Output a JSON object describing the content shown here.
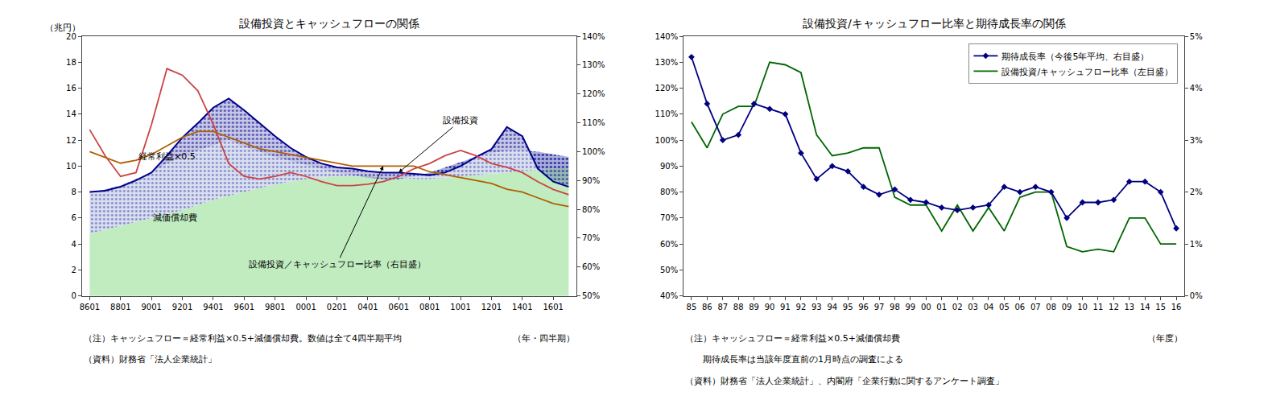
{
  "chart_data": [
    {
      "type": "line",
      "title": "設備投資とキャッシュフローの関係",
      "ylabel": "（兆円）",
      "xlabel": "（年・四半期）",
      "notes": [
        "（注）キャッシュフロー＝経常利益×0.5+減価償却費。数値は全て4四半期平均",
        "（資料）財務省「法人企業統計」"
      ],
      "categories": [
        "8601",
        null,
        "8801",
        null,
        "9001",
        null,
        "9201",
        null,
        "9401",
        null,
        "9601",
        null,
        "9801",
        null,
        "0001",
        null,
        "0201",
        null,
        "0401",
        null,
        "0601",
        null,
        "0801",
        null,
        "1001",
        null,
        "1201",
        null,
        "1401",
        null,
        "1601",
        null
      ],
      "ylim": [
        0,
        20
      ],
      "yticks": [
        0,
        2,
        4,
        6,
        8,
        10,
        12,
        14,
        16,
        18,
        20
      ],
      "y2lim": [
        50,
        140
      ],
      "y2ticks": [
        {
          "value": 50,
          "label": "50%"
        },
        {
          "value": 60,
          "label": "60%"
        },
        {
          "value": 70,
          "label": "70%"
        },
        {
          "value": 80,
          "label": "80%"
        },
        {
          "value": 90,
          "label": "90%"
        },
        {
          "value": 100,
          "label": "100%"
        },
        {
          "value": 110,
          "label": "110%"
        },
        {
          "value": 120,
          "label": "120%"
        },
        {
          "value": 130,
          "label": "130%"
        },
        {
          "value": 140,
          "label": "140%"
        }
      ],
      "grid": false,
      "series": [
        {
          "type": "area",
          "color": "#c0ecc0",
          "values": [
            4.8,
            5.1,
            5.4,
            5.7,
            6.0,
            6.3,
            6.6,
            7.0,
            7.4,
            7.7,
            8.0,
            8.3,
            8.6,
            8.8,
            9.0,
            9.1,
            9.2,
            9.2,
            9.2,
            9.1,
            9.1,
            9.0,
            9.0,
            9.1,
            9.2,
            9.3,
            9.4,
            9.5,
            9.6,
            9.7,
            9.8,
            9.9
          ]
        },
        {
          "type": "area",
          "color": "#d8dff0",
          "values": [
            7.9,
            8.2,
            8.5,
            9.0,
            9.5,
            10.2,
            10.8,
            11.2,
            11.6,
            12.0,
            11.5,
            11.1,
            10.7,
            10.4,
            10.1,
            9.8,
            9.5,
            9.3,
            9.1,
            9.0,
            9.0,
            9.2,
            9.5,
            9.9,
            10.3,
            10.7,
            11.0,
            11.2,
            11.2,
            11.1,
            10.9,
            10.7
          ]
        },
        {
          "type": "band",
          "color": "#00008B",
          "values": [
            8.0,
            8.1,
            8.4,
            8.9,
            9.5,
            10.8,
            12.2,
            13.3,
            14.5,
            15.2,
            14.3,
            13.3,
            12.3,
            11.4,
            10.7,
            10.2,
            9.9,
            9.8,
            9.6,
            9.5,
            9.5,
            9.4,
            9.3,
            9.5,
            10.0,
            10.7,
            11.3,
            13.0,
            12.3,
            9.8,
            8.8,
            8.4
          ]
        },
        {
          "type": "line",
          "color": "#cc4444",
          "values": [
            12.8,
            10.8,
            9.2,
            9.5,
            13.2,
            17.5,
            17.0,
            15.8,
            13.2,
            10.2,
            9.2,
            9.0,
            9.2,
            9.5,
            9.2,
            8.8,
            8.5,
            8.5,
            8.6,
            8.8,
            9.2,
            9.8,
            10.2,
            10.8,
            11.2,
            10.8,
            10.2,
            9.9,
            9.5,
            8.8,
            8.2,
            7.8
          ]
        },
        {
          "type": "line",
          "color": "#b06000",
          "axis": "y2",
          "values": [
            100,
            98,
            96,
            97,
            99,
            102,
            105,
            107,
            107,
            105,
            103,
            101,
            100,
            99,
            98,
            97,
            96,
            95,
            95,
            95,
            95,
            95,
            93,
            92,
            91,
            90,
            89,
            87,
            86,
            84,
            82,
            81
          ]
        }
      ],
      "annotations": [
        {
          "text": "設備投資",
          "x": 20,
          "y": 9.5,
          "text_x": 24,
          "text_y": 13.5,
          "arrow": true
        },
        {
          "text": "減価償却費",
          "x": 4,
          "y": 5.5
        },
        {
          "text": "経常利益×0.5",
          "x": 3,
          "y": 10.2
        },
        {
          "text": "設備投資／キャッシュフロー比率（右目盛）",
          "x": 19,
          "y": 95,
          "text_x": 16,
          "text_y": 61,
          "axis": "y2",
          "arrow": true
        }
      ]
    },
    {
      "type": "line",
      "title": "設備投資/キャッシュフロー比率と期待成長率の関係",
      "xlabel": "（年度）",
      "notes": [
        "（注）キャッシュフロー＝経常利益×0.5+減価償却費",
        "　　期待成長率は当該年度直前の1月時点の調査による",
        "（資料）財務省「法人企業統計」、内閣府「企業行動に関するアンケート調査」"
      ],
      "categories": [
        "85",
        "86",
        "87",
        "88",
        "89",
        "90",
        "91",
        "92",
        "93",
        "94",
        "95",
        "96",
        "97",
        "98",
        "99",
        "00",
        "01",
        "02",
        "03",
        "04",
        "05",
        "06",
        "07",
        "08",
        "09",
        "10",
        "11",
        "12",
        "13",
        "14",
        "15",
        "16"
      ],
      "ylim": [
        40,
        140
      ],
      "yticks": [
        {
          "value": 40,
          "label": "40%"
        },
        {
          "value": 50,
          "label": "50%"
        },
        {
          "value": 60,
          "label": "60%"
        },
        {
          "value": 70,
          "label": "70%"
        },
        {
          "value": 80,
          "label": "80%"
        },
        {
          "value": 90,
          "label": "90%"
        },
        {
          "value": 100,
          "label": "100%"
        },
        {
          "value": 110,
          "label": "110%"
        },
        {
          "value": 120,
          "label": "120%"
        },
        {
          "value": 130,
          "label": "130%"
        },
        {
          "value": 140,
          "label": "140%"
        }
      ],
      "y2lim": [
        0,
        5
      ],
      "y2ticks": [
        {
          "value": 0,
          "label": "0%"
        },
        {
          "value": 1,
          "label": "1%"
        },
        {
          "value": 2,
          "label": "2%"
        },
        {
          "value": 3,
          "label": "3%"
        },
        {
          "value": 4,
          "label": "4%"
        },
        {
          "value": 5,
          "label": "5%"
        }
      ],
      "grid": false,
      "legend": "upper right",
      "series": [
        {
          "name": "設備投資/キャッシュフロー比率（左目盛）",
          "type": "line",
          "color": "#006600",
          "values": [
            107,
            97,
            110,
            113,
            113,
            130,
            129,
            126,
            102,
            94,
            95,
            97,
            97,
            78,
            75,
            75,
            65,
            75,
            65,
            74,
            65,
            78,
            80,
            80,
            59,
            57,
            58,
            57,
            70,
            70,
            60,
            60
          ]
        },
        {
          "name": "期待成長率（今後5年平均、右目盛）",
          "type": "line",
          "color": "#000080",
          "axis": "y2",
          "marker": "diamond",
          "values": [
            4.6,
            3.7,
            3.0,
            3.1,
            3.7,
            3.6,
            3.5,
            2.75,
            2.25,
            2.5,
            2.4,
            2.1,
            1.95,
            2.05,
            1.85,
            1.8,
            1.7,
            1.65,
            1.7,
            1.75,
            2.1,
            2.0,
            2.1,
            2.0,
            1.5,
            1.8,
            1.8,
            1.85,
            2.2,
            2.2,
            2.0,
            1.3
          ]
        }
      ]
    }
  ]
}
